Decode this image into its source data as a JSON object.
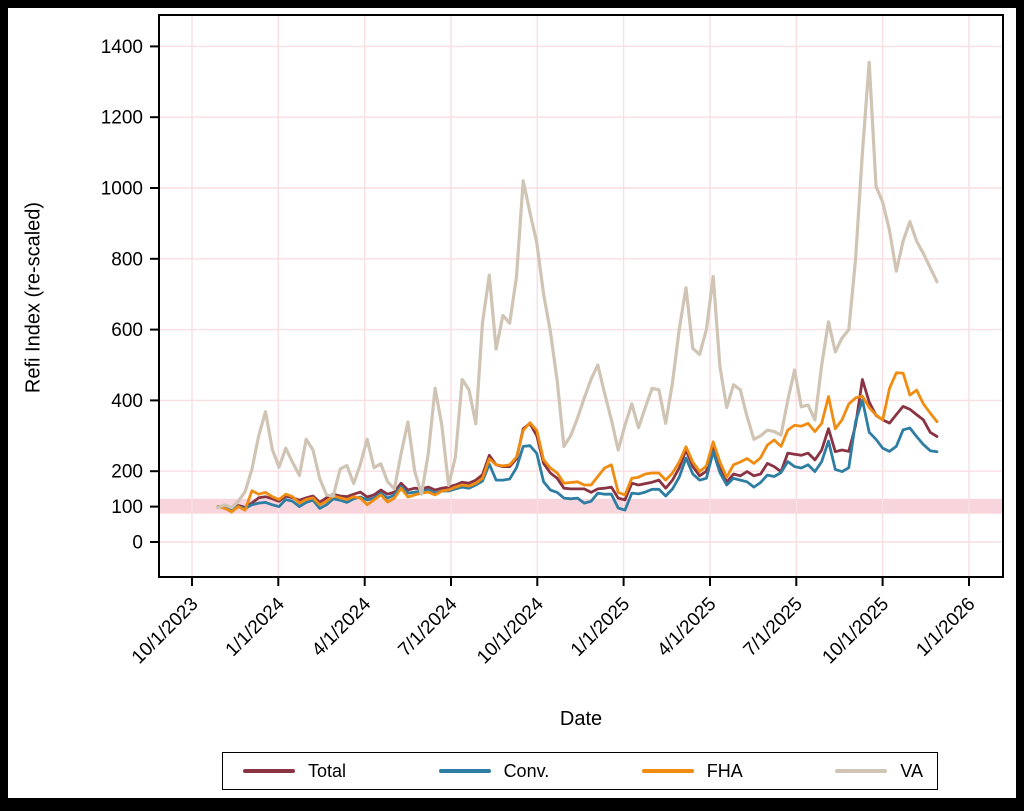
{
  "colors": {
    "total": "#8a3343",
    "conv": "#2e7ea3",
    "fha": "#ef8c11",
    "va": "#d0c4b5",
    "gridline": "#f9dee2",
    "reference_band": "#f8d5dc",
    "axis": "#000000",
    "background": "#ffffff",
    "frame": "#000000"
  },
  "legend": {
    "items": [
      {
        "key": "total",
        "label": "Total"
      },
      {
        "key": "conv",
        "label": "Conv."
      },
      {
        "key": "fha",
        "label": "FHA"
      },
      {
        "key": "va",
        "label": "VA"
      }
    ]
  },
  "chart_data": {
    "type": "line",
    "title": "",
    "xlabel": "Date",
    "ylabel": "Refi Index (re-scaled)",
    "x_tick_labels": [
      "10/1/2023",
      "1/1/2024",
      "4/1/2024",
      "7/1/2024",
      "10/1/2024",
      "1/1/2025",
      "4/1/2025",
      "7/1/2025",
      "10/1/2025",
      "1/1/2026"
    ],
    "y_ticks": [
      0,
      100,
      200,
      400,
      600,
      800,
      1000,
      1200,
      1400
    ],
    "ylim": [
      0,
      1400
    ],
    "grid": true,
    "legend_position": "bottom",
    "x_frequency": "weekly (first point ~11/2023, last ~11/2025)",
    "reference_band": {
      "center": 100,
      "low": 80,
      "high": 122
    },
    "series": [
      {
        "name": "Total",
        "color_key": "total",
        "values": [
          100,
          98,
          95,
          103,
          98,
          110,
          125,
          128,
          122,
          115,
          130,
          125,
          118,
          125,
          130,
          112,
          125,
          135,
          130,
          128,
          135,
          141,
          127,
          133,
          147,
          135,
          141,
          166,
          147,
          152,
          150,
          155,
          147,
          152,
          155,
          161,
          169,
          166,
          175,
          190,
          245,
          218,
          213,
          213,
          235,
          320,
          335,
          300,
          222,
          195,
          180,
          152,
          150,
          150,
          150,
          140,
          150,
          152,
          155,
          124,
          119,
          166,
          161,
          165,
          169,
          175,
          152,
          175,
          209,
          260,
          213,
          187,
          200,
          274,
          213,
          169,
          192,
          187,
          199,
          187,
          192,
          222,
          213,
          199,
          251,
          248,
          245,
          251,
          232,
          260,
          320,
          255,
          260,
          256,
          330,
          459,
          395,
          358,
          345,
          336,
          360,
          383,
          375,
          360,
          345,
          310,
          298
        ]
      },
      {
        "name": "Conv.",
        "color_key": "conv",
        "values": [
          100,
          97,
          93,
          100,
          95,
          105,
          110,
          112,
          105,
          100,
          120,
          115,
          100,
          112,
          118,
          95,
          105,
          122,
          118,
          112,
          122,
          127,
          119,
          124,
          138,
          124,
          133,
          157,
          138,
          141,
          144,
          147,
          138,
          144,
          144,
          150,
          155,
          152,
          161,
          172,
          220,
          175,
          175,
          178,
          210,
          270,
          272,
          250,
          170,
          147,
          140,
          124,
          122,
          124,
          110,
          115,
          138,
          135,
          135,
          96,
          90,
          138,
          136,
          141,
          149,
          149,
          130,
          150,
          183,
          237,
          192,
          175,
          180,
          255,
          196,
          161,
          180,
          175,
          170,
          155,
          168,
          189,
          185,
          196,
          227,
          213,
          209,
          218,
          199,
          227,
          285,
          205,
          199,
          210,
          340,
          401,
          310,
          290,
          265,
          256,
          270,
          317,
          322,
          298,
          275,
          258,
          255
        ]
      },
      {
        "name": "FHA",
        "color_key": "fha",
        "values": [
          100,
          95,
          85,
          100,
          90,
          145,
          135,
          140,
          128,
          120,
          135,
          128,
          110,
          120,
          125,
          105,
          115,
          130,
          125,
          120,
          128,
          124,
          105,
          119,
          133,
          113,
          124,
          152,
          127,
          133,
          138,
          141,
          133,
          144,
          147,
          155,
          161,
          158,
          166,
          180,
          235,
          218,
          215,
          218,
          240,
          315,
          337,
          315,
          232,
          209,
          195,
          166,
          168,
          170,
          161,
          161,
          185,
          209,
          218,
          140,
          133,
          180,
          183,
          192,
          195,
          195,
          175,
          195,
          226,
          269,
          226,
          199,
          215,
          283,
          226,
          183,
          218,
          226,
          236,
          222,
          238,
          274,
          288,
          270,
          316,
          330,
          327,
          335,
          312,
          335,
          411,
          320,
          345,
          390,
          407,
          412,
          380,
          359,
          345,
          434,
          478,
          477,
          415,
          429,
          390,
          364,
          340
        ]
      },
      {
        "name": "VA",
        "color_key": "va",
        "values": [
          97,
          105,
          97,
          115,
          142,
          205,
          300,
          368,
          262,
          211,
          265,
          225,
          188,
          290,
          260,
          179,
          133,
          130,
          206,
          216,
          165,
          220,
          290,
          210,
          221,
          170,
          150,
          250,
          339,
          200,
          135,
          250,
          434,
          330,
          160,
          240,
          459,
          430,
          334,
          620,
          754,
          545,
          640,
          618,
          750,
          1020,
          930,
          845,
          700,
          594,
          455,
          270,
          300,
          350,
          407,
          460,
          500,
          420,
          345,
          260,
          330,
          390,
          323,
          380,
          434,
          430,
          335,
          450,
          600,
          718,
          547,
          530,
          600,
          750,
          496,
          380,
          444,
          430,
          354,
          290,
          300,
          316,
          312,
          302,
          401,
          486,
          382,
          387,
          345,
          500,
          622,
          537,
          576,
          600,
          800,
          1100,
          1355,
          1005,
          960,
          880,
          765,
          850,
          905,
          850,
          815,
          775,
          735
        ]
      }
    ]
  }
}
